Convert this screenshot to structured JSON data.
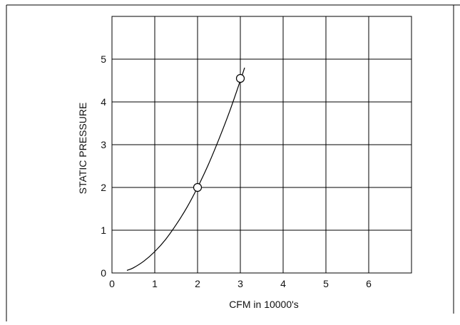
{
  "chart_data": {
    "type": "line",
    "title": "",
    "xlabel": "CFM  in  10000's",
    "ylabel": "STATIC  PRESSURE",
    "xlim": [
      0,
      7
    ],
    "ylim": [
      0,
      6
    ],
    "x_ticks": [
      "0",
      "1",
      "2",
      "3",
      "4",
      "5",
      "6"
    ],
    "y_ticks": [
      "0",
      "1",
      "2",
      "3",
      "4",
      "5"
    ],
    "grid": true,
    "series": [
      {
        "x": [
          0.35,
          0.5,
          0.75,
          1.0,
          1.25,
          1.5,
          1.75,
          2.0,
          2.25,
          2.5,
          2.75,
          3.0,
          3.1
        ],
        "y": [
          0.06,
          0.12,
          0.28,
          0.5,
          0.78,
          1.13,
          1.53,
          2.0,
          2.53,
          3.13,
          3.78,
          4.5,
          4.8
        ]
      }
    ],
    "markers": [
      {
        "x": 2.0,
        "y": 2.0,
        "shape": "open-circle"
      },
      {
        "x": 3.0,
        "y": 4.55,
        "shape": "open-circle"
      }
    ],
    "colors": {
      "line": "#000000",
      "grid": "#000000"
    }
  }
}
